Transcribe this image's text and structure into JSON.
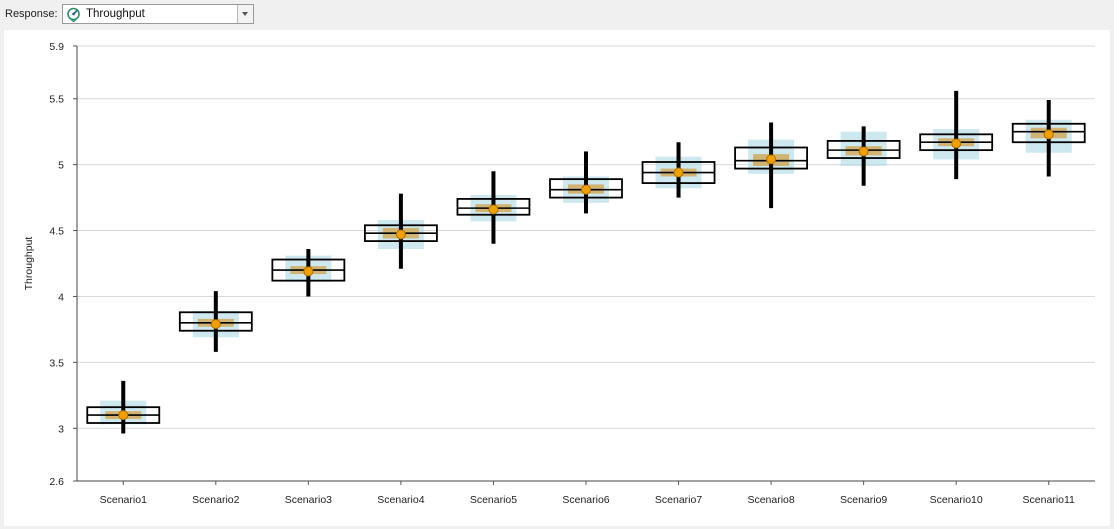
{
  "toolbar": {
    "response_label": "Response:",
    "response_value": "Throughput",
    "response_icon": "throughput-gauge-icon",
    "dropdown_icon": "chevron-down-icon"
  },
  "colors": {
    "box_outline": "#000000",
    "whisker": "#000000",
    "ci_band": "#add8e6",
    "median_band": "#d2a24a",
    "median_line": "#9a6a10",
    "mean_marker": "#f0a000",
    "mean_marker_stroke": "#b07000",
    "grid": "#d8d8d8"
  },
  "chart_data": {
    "type": "boxplot",
    "title": "",
    "xlabel": "",
    "ylabel": "Throughput",
    "ylim": [
      2.6,
      5.9
    ],
    "yticks": [
      "2.6",
      "3",
      "3.5",
      "4",
      "4.5",
      "5",
      "5.5",
      "5.9"
    ],
    "grid": true,
    "categories": [
      "Scenario1",
      "Scenario2",
      "Scenario3",
      "Scenario4",
      "Scenario5",
      "Scenario6",
      "Scenario7",
      "Scenario8",
      "Scenario9",
      "Scenario10",
      "Scenario11"
    ],
    "series": [
      {
        "whisker_low": [
          2.96,
          3.58,
          4.0,
          4.21,
          4.4,
          4.63,
          4.75,
          4.67,
          4.84,
          4.89,
          4.91
        ],
        "whisker_high": [
          3.36,
          4.04,
          4.36,
          4.78,
          4.95,
          5.1,
          5.17,
          5.32,
          5.29,
          5.56,
          5.49
        ],
        "q1": [
          3.04,
          3.74,
          4.12,
          4.42,
          4.62,
          4.75,
          4.86,
          4.97,
          5.05,
          5.11,
          5.17
        ],
        "q3": [
          3.16,
          3.88,
          4.28,
          4.54,
          4.74,
          4.89,
          5.02,
          5.13,
          5.18,
          5.23,
          5.31
        ],
        "median": [
          3.1,
          3.8,
          4.2,
          4.48,
          4.67,
          4.81,
          4.94,
          5.03,
          5.11,
          5.17,
          5.25
        ],
        "mean": [
          3.1,
          3.79,
          4.19,
          4.47,
          4.66,
          4.81,
          4.94,
          5.04,
          5.1,
          5.16,
          5.23
        ],
        "mean_ci_low": [
          3.03,
          3.69,
          4.11,
          4.36,
          4.57,
          4.71,
          4.82,
          4.93,
          4.99,
          5.04,
          5.09
        ],
        "mean_ci_high": [
          3.21,
          3.89,
          4.31,
          4.58,
          4.77,
          4.91,
          5.06,
          5.19,
          5.25,
          5.27,
          5.34
        ],
        "median_ci_low": [
          3.07,
          3.77,
          4.17,
          4.44,
          4.64,
          4.78,
          4.91,
          4.99,
          5.07,
          5.14,
          5.2
        ],
        "median_ci_high": [
          3.13,
          3.83,
          4.23,
          4.52,
          4.7,
          4.85,
          4.97,
          5.08,
          5.14,
          5.2,
          5.28
        ]
      }
    ]
  }
}
